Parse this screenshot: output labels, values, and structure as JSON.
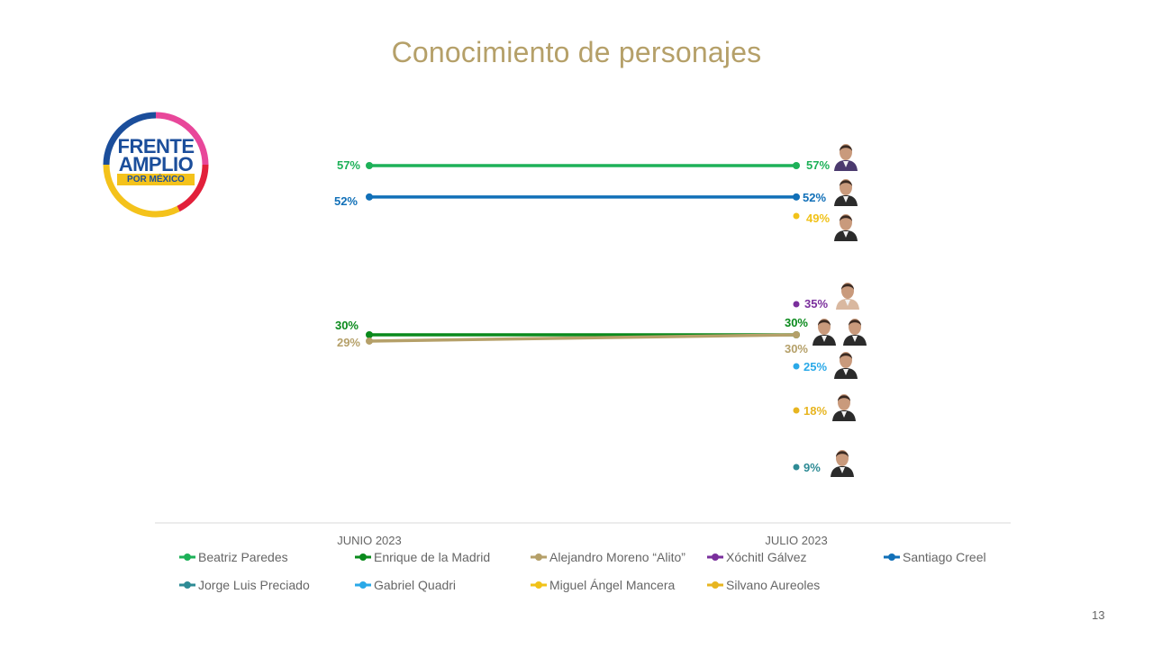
{
  "title": "Conocimiento de personajes",
  "title_color": "#B5A069",
  "page_number": "13",
  "logo": {
    "line1": "FRENTE",
    "line2": "AMPLIO",
    "line3": "POR MÉXICO",
    "colors": {
      "blue": "#1B4E9B",
      "pink": "#E8479A",
      "red": "#E2203A",
      "yellow": "#F4C21B"
    }
  },
  "chart_data": {
    "type": "line",
    "x": [
      "JUNIO 2023",
      "JULIO 2023"
    ],
    "ylim": [
      0,
      100
    ],
    "series": [
      {
        "name": "Beatriz Paredes",
        "values": [
          57,
          57
        ],
        "color": "#1DB158",
        "labels": [
          "57%",
          "57%"
        ]
      },
      {
        "name": "Enrique de la Madrid",
        "values": [
          30,
          30
        ],
        "color": "#0A8A1C",
        "labels": [
          "30%",
          "30%"
        ]
      },
      {
        "name": "Alejandro Moreno “Alito”",
        "values": [
          29,
          30
        ],
        "color": "#B5A069",
        "labels": [
          "29%",
          "30%"
        ]
      },
      {
        "name": "Xóchitl Gálvez",
        "values": [
          null,
          35
        ],
        "color": "#7A2F9C",
        "labels": [
          "",
          "35%"
        ]
      },
      {
        "name": "Santiago Creel",
        "values": [
          52,
          52
        ],
        "color": "#1170B8",
        "labels": [
          "52%",
          "52%"
        ]
      },
      {
        "name": "Jorge Luis Preciado",
        "values": [
          null,
          9
        ],
        "color": "#2E8B95",
        "labels": [
          "",
          "9%"
        ]
      },
      {
        "name": "Gabriel Quadri",
        "values": [
          null,
          25
        ],
        "color": "#2AA9E8",
        "labels": [
          "",
          "25%"
        ]
      },
      {
        "name": "Miguel Ángel Mancera",
        "values": [
          null,
          49
        ],
        "color": "#F1C219",
        "labels": [
          "",
          "49%"
        ]
      },
      {
        "name": "Silvano Aureoles",
        "values": [
          null,
          18
        ],
        "color": "#E7B520",
        "labels": [
          "",
          "18%"
        ]
      }
    ],
    "legend": "bottom",
    "grid": false
  }
}
